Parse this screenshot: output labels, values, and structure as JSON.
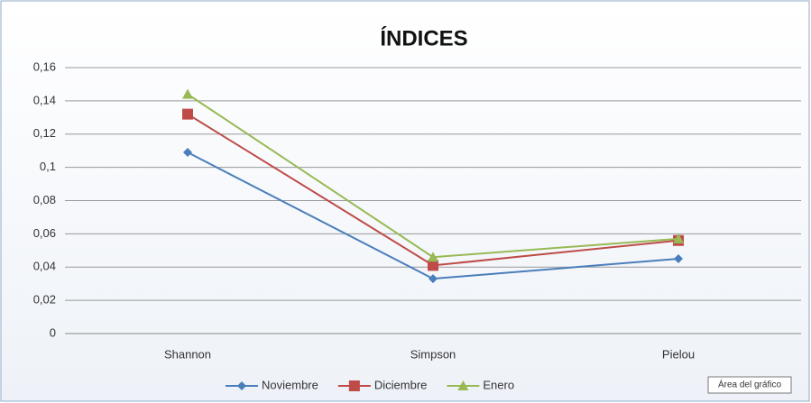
{
  "chart_data": {
    "type": "line",
    "title": "ÍNDICES",
    "categories": [
      "Shannon",
      "Simpson",
      "Pielou"
    ],
    "series": [
      {
        "name": "Noviembre",
        "color": "#4a7ebb",
        "marker": "diamond",
        "values": [
          0.109,
          0.033,
          0.045
        ]
      },
      {
        "name": "Diciembre",
        "color": "#be4b48",
        "marker": "square",
        "values": [
          0.132,
          0.041,
          0.056
        ]
      },
      {
        "name": "Enero",
        "color": "#98b954",
        "marker": "triangle",
        "values": [
          0.144,
          0.046,
          0.057
        ]
      }
    ],
    "ylim": [
      0,
      0.16
    ],
    "yticks": [
      0,
      {
        "value": 0.02,
        "label": "0,02"
      },
      {
        "value": 0.04,
        "label": "0,04"
      },
      {
        "value": 0.06,
        "label": "0,06"
      },
      {
        "value": 0.08,
        "label": "0,08"
      },
      {
        "value": 0.1,
        "label": "0,1"
      },
      {
        "value": 0.12,
        "label": "0,12"
      },
      {
        "value": 0.14,
        "label": "0,14"
      },
      {
        "value": 0.16,
        "label": "0,16"
      }
    ],
    "grid": true,
    "legend": "bottom",
    "tooltip": "Área del gráfico"
  }
}
